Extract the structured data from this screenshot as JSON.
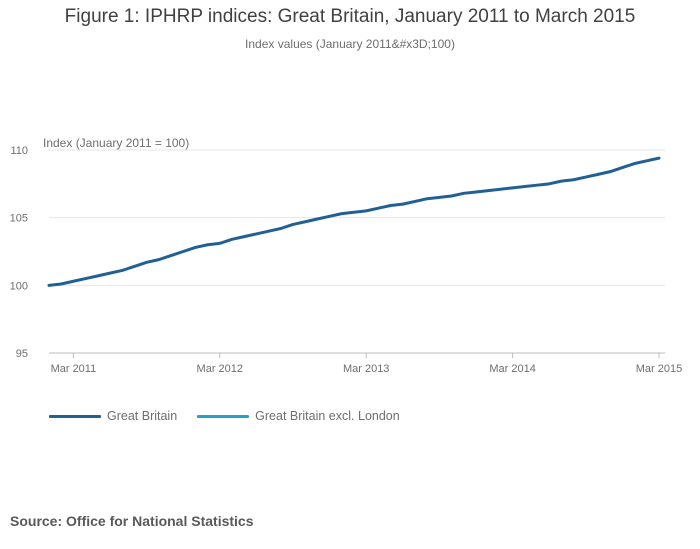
{
  "chart_data": {
    "type": "line",
    "title": "Figure 1: IPHRP indices: Great Britain, January 2011 to March 2015",
    "subtitle": "Index values (January 2011&#x3D;100)",
    "ylabel": "Index (January 2011 = 100)",
    "xlabel": "",
    "ylim": [
      95,
      110
    ],
    "yticks": [
      95,
      100,
      105,
      110
    ],
    "xticks": [
      {
        "label": "Mar 2011",
        "index": 2
      },
      {
        "label": "Mar 2012",
        "index": 14
      },
      {
        "label": "Mar 2013",
        "index": 26
      },
      {
        "label": "Mar 2014",
        "index": 38
      },
      {
        "label": "Mar 2015",
        "index": 50
      }
    ],
    "grid": true,
    "legend_position": "bottom-left",
    "x_count": 51,
    "series": [
      {
        "name": "Great Britain",
        "color": "#206095",
        "values": [
          100.0,
          100.1,
          100.3,
          100.5,
          100.7,
          100.9,
          101.1,
          101.4,
          101.7,
          101.9,
          102.2,
          102.5,
          102.8,
          103.0,
          103.1,
          103.4,
          103.6,
          103.8,
          104.0,
          104.2,
          104.5,
          104.7,
          104.9,
          105.1,
          105.3,
          105.4,
          105.5,
          105.7,
          105.9,
          106.0,
          106.2,
          106.4,
          106.5,
          106.6,
          106.8,
          106.9,
          107.0,
          107.1,
          107.2,
          107.3,
          107.4,
          107.5,
          107.7,
          107.8,
          108.0,
          108.2,
          108.4,
          108.7,
          109.0,
          109.2,
          109.4
        ]
      },
      {
        "name": "Great Britain excl. London",
        "color": "#27a0cc",
        "values": []
      }
    ]
  },
  "source": "Source: Office for National Statistics"
}
